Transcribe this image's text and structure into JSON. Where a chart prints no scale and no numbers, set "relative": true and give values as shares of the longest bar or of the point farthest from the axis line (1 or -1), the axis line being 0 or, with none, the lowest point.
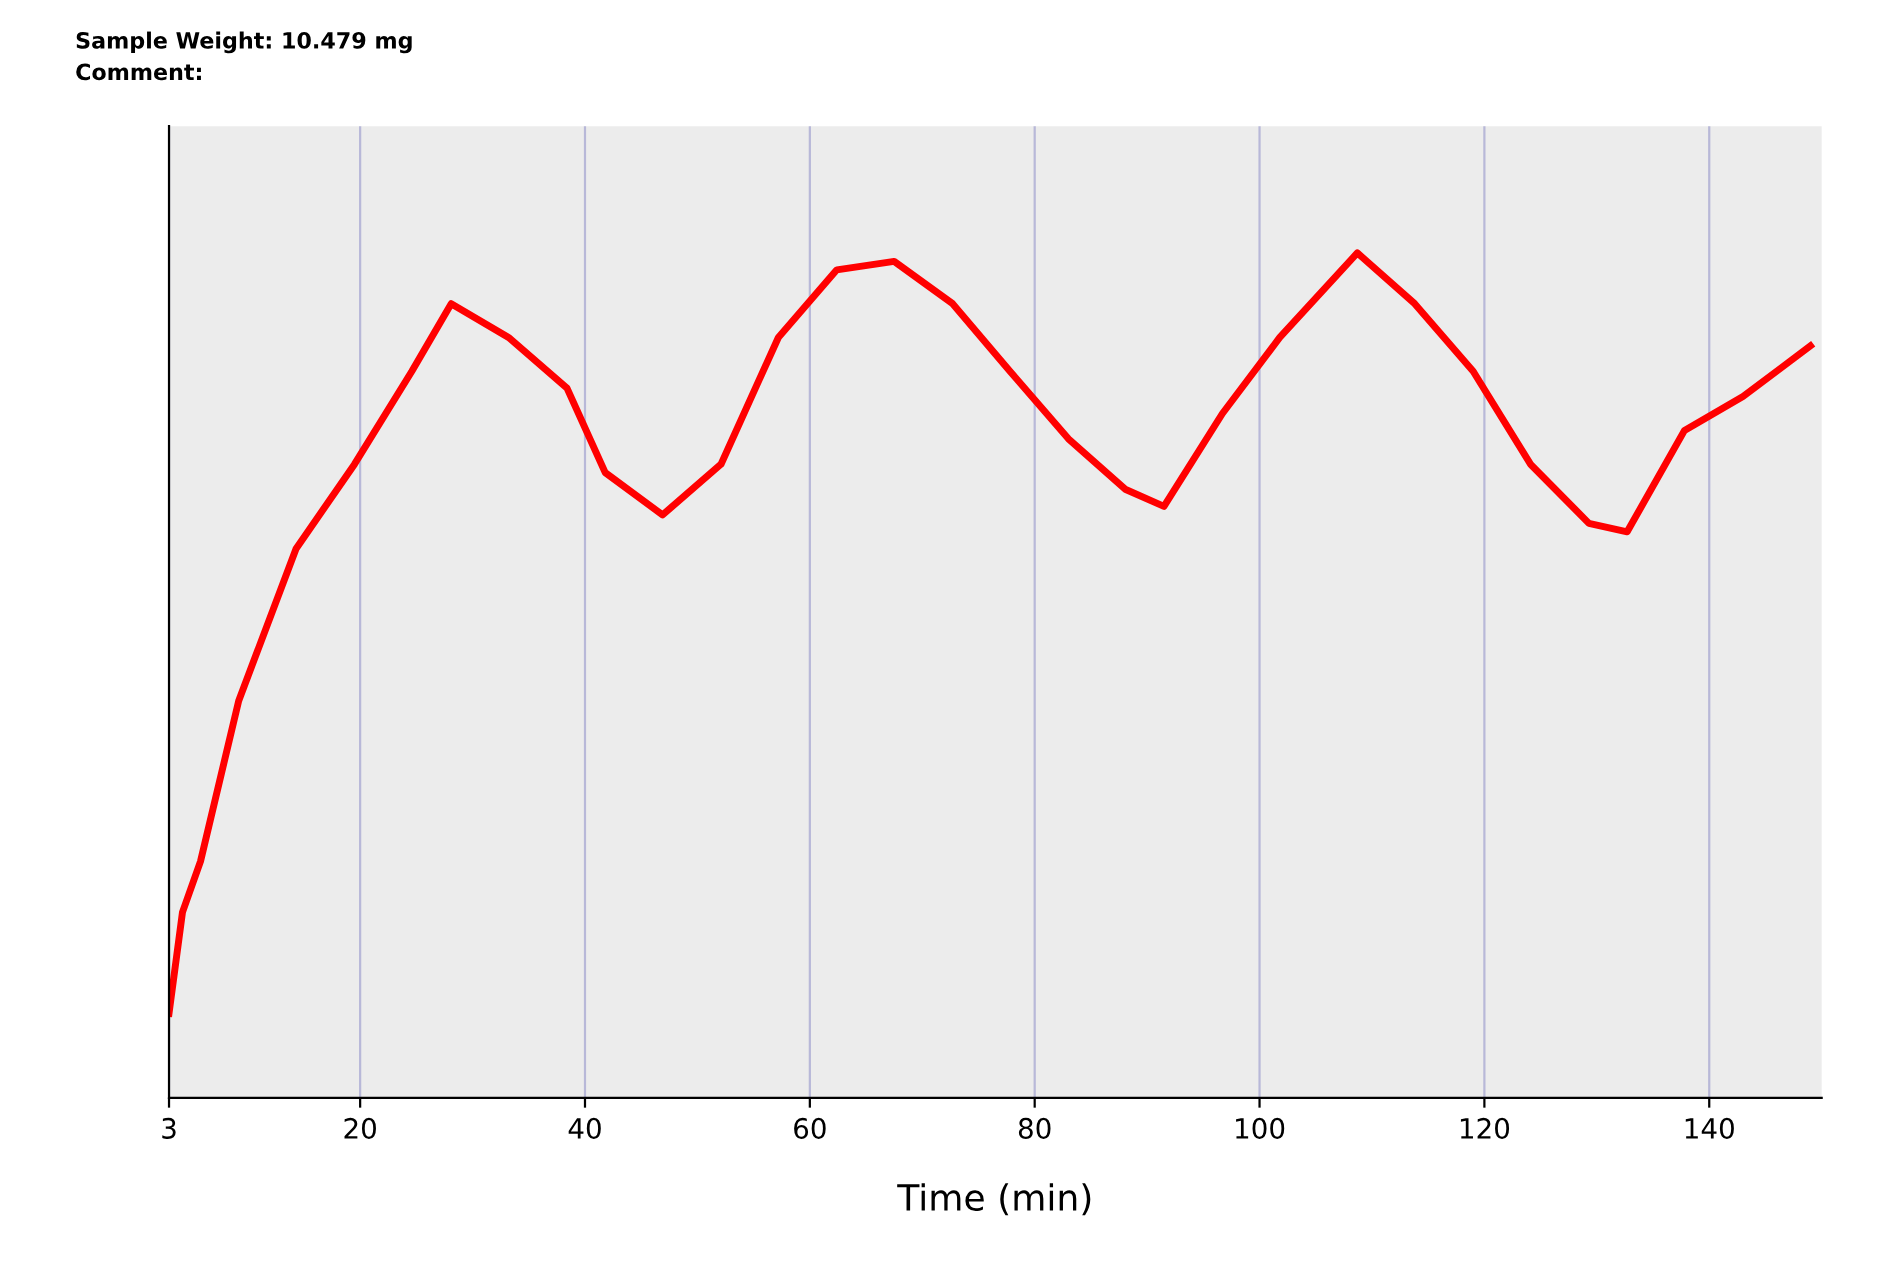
{
  "chart_data": {
    "type": "line",
    "relative": true,
    "xlabel": "Time (min)",
    "annotations": [
      "Sample Weight: 10.479 mg",
      "Comment:"
    ],
    "xlim": [
      3,
      150
    ],
    "xticks": [
      3,
      20,
      40,
      60,
      80,
      100,
      120,
      140
    ],
    "grid": "x",
    "marker": "none",
    "line_style": "solid",
    "series": [
      {
        "color": "#ff0000",
        "x": [
          3,
          4.2,
          5.8,
          9.2,
          14.3,
          19.5,
          24.6,
          28.1,
          33.2,
          38.4,
          41.8,
          46.9,
          52.1,
          57.2,
          62.4,
          67.5,
          72.7,
          77.8,
          83,
          88.1,
          91.5,
          96.7,
          101.8,
          108.7,
          113.8,
          119,
          124.1,
          129.3,
          132.7,
          137.8,
          143,
          149
        ],
        "values": [
          0.1,
          0.22,
          0.28,
          0.47,
          0.65,
          0.75,
          0.86,
          0.94,
          0.9,
          0.84,
          0.74,
          0.69,
          0.75,
          0.9,
          0.98,
          0.99,
          0.94,
          0.86,
          0.78,
          0.72,
          0.7,
          0.81,
          0.9,
          1,
          0.94,
          0.86,
          0.75,
          0.68,
          0.67,
          0.79,
          0.83,
          0.89
        ]
      }
    ]
  }
}
